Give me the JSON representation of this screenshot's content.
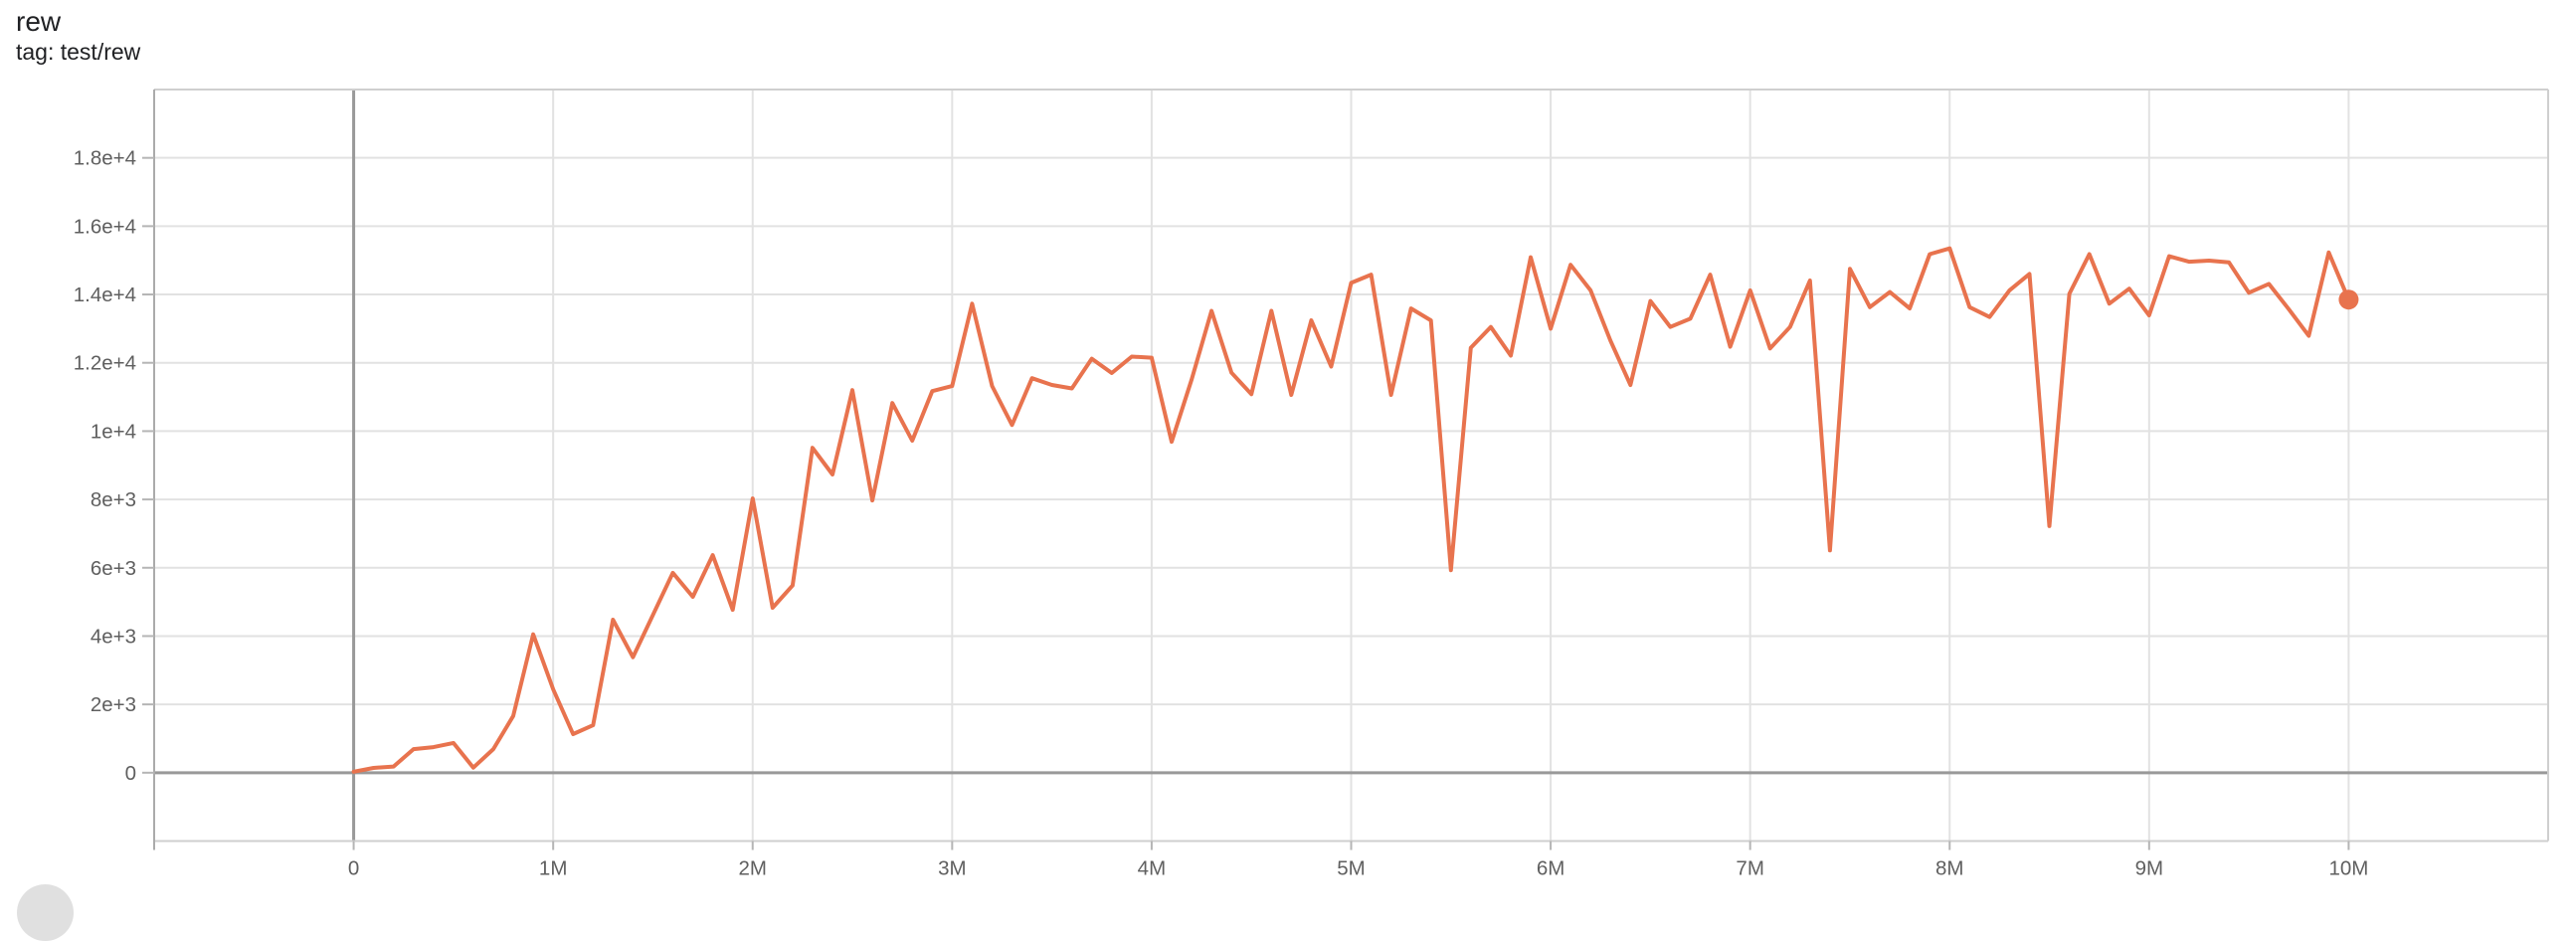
{
  "card": {
    "title": "rew",
    "tag_line": "tag: test/rew"
  },
  "chart_data": {
    "type": "line",
    "title": "rew",
    "tag": "test/rew",
    "grid": true,
    "legend": "none",
    "x_unit": "steps (millions)",
    "x_range_millions": [
      -1,
      11
    ],
    "y_range": [
      -2000,
      20000
    ],
    "x_ticks": [
      {
        "v": 0,
        "label": "0"
      },
      {
        "v": 1,
        "label": "1M"
      },
      {
        "v": 2,
        "label": "2M"
      },
      {
        "v": 3,
        "label": "3M"
      },
      {
        "v": 4,
        "label": "4M"
      },
      {
        "v": 5,
        "label": "5M"
      },
      {
        "v": 6,
        "label": "6M"
      },
      {
        "v": 7,
        "label": "7M"
      },
      {
        "v": 8,
        "label": "8M"
      },
      {
        "v": 9,
        "label": "9M"
      },
      {
        "v": 10,
        "label": "10M"
      }
    ],
    "y_ticks": [
      {
        "v": 0,
        "label": "0"
      },
      {
        "v": 2000,
        "label": "2e+3"
      },
      {
        "v": 4000,
        "label": "4e+3"
      },
      {
        "v": 6000,
        "label": "6e+3"
      },
      {
        "v": 8000,
        "label": "8e+3"
      },
      {
        "v": 10000,
        "label": "1e+4"
      },
      {
        "v": 12000,
        "label": "1.2e+4"
      },
      {
        "v": 14000,
        "label": "1.4e+4"
      },
      {
        "v": 16000,
        "label": "1.6e+4"
      },
      {
        "v": 18000,
        "label": "1.8e+4"
      }
    ],
    "series": [
      {
        "name": "test/rew",
        "color": "#e8734e",
        "end_marker": true,
        "points": [
          [
            0.0,
            30
          ],
          [
            0.1,
            140
          ],
          [
            0.2,
            180
          ],
          [
            0.3,
            690
          ],
          [
            0.4,
            750
          ],
          [
            0.5,
            870
          ],
          [
            0.6,
            150
          ],
          [
            0.7,
            690
          ],
          [
            0.8,
            1660
          ],
          [
            0.9,
            4050
          ],
          [
            1.0,
            2440
          ],
          [
            1.1,
            1130
          ],
          [
            1.2,
            1390
          ],
          [
            1.3,
            4480
          ],
          [
            1.4,
            3380
          ],
          [
            1.5,
            4620
          ],
          [
            1.6,
            5850
          ],
          [
            1.7,
            5150
          ],
          [
            1.8,
            6370
          ],
          [
            1.9,
            4770
          ],
          [
            2.0,
            8030
          ],
          [
            2.1,
            4830
          ],
          [
            2.2,
            5480
          ],
          [
            2.3,
            9510
          ],
          [
            2.4,
            8730
          ],
          [
            2.5,
            11200
          ],
          [
            2.6,
            7970
          ],
          [
            2.7,
            10820
          ],
          [
            2.8,
            9720
          ],
          [
            2.9,
            11170
          ],
          [
            3.0,
            11320
          ],
          [
            3.1,
            13730
          ],
          [
            3.2,
            11320
          ],
          [
            3.3,
            10180
          ],
          [
            3.4,
            11550
          ],
          [
            3.5,
            11350
          ],
          [
            3.6,
            11250
          ],
          [
            3.7,
            12120
          ],
          [
            3.8,
            11700
          ],
          [
            3.9,
            12180
          ],
          [
            4.0,
            12150
          ],
          [
            4.1,
            9690
          ],
          [
            4.2,
            11500
          ],
          [
            4.3,
            13520
          ],
          [
            4.4,
            11710
          ],
          [
            4.5,
            11080
          ],
          [
            4.6,
            13520
          ],
          [
            4.7,
            11060
          ],
          [
            4.8,
            13240
          ],
          [
            4.9,
            11890
          ],
          [
            5.0,
            14340
          ],
          [
            5.1,
            14580
          ],
          [
            5.2,
            11060
          ],
          [
            5.3,
            13590
          ],
          [
            5.4,
            13240
          ],
          [
            5.5,
            5930
          ],
          [
            5.6,
            12440
          ],
          [
            5.7,
            13050
          ],
          [
            5.8,
            12210
          ],
          [
            5.9,
            15090
          ],
          [
            6.0,
            13000
          ],
          [
            6.1,
            14870
          ],
          [
            6.2,
            14120
          ],
          [
            6.3,
            12640
          ],
          [
            6.4,
            11350
          ],
          [
            6.5,
            13810
          ],
          [
            6.6,
            13050
          ],
          [
            6.7,
            13290
          ],
          [
            6.8,
            14580
          ],
          [
            6.9,
            12470
          ],
          [
            7.0,
            14120
          ],
          [
            7.1,
            12420
          ],
          [
            7.2,
            13050
          ],
          [
            7.3,
            14410
          ],
          [
            7.4,
            6510
          ],
          [
            7.5,
            14750
          ],
          [
            7.6,
            13630
          ],
          [
            7.7,
            14070
          ],
          [
            7.8,
            13590
          ],
          [
            7.9,
            15180
          ],
          [
            8.0,
            15350
          ],
          [
            8.1,
            13630
          ],
          [
            8.2,
            13340
          ],
          [
            8.3,
            14120
          ],
          [
            8.4,
            14600
          ],
          [
            8.5,
            7220
          ],
          [
            8.6,
            14020
          ],
          [
            8.7,
            15180
          ],
          [
            8.8,
            13730
          ],
          [
            8.9,
            14170
          ],
          [
            9.0,
            13390
          ],
          [
            9.1,
            15120
          ],
          [
            9.2,
            14960
          ],
          [
            9.3,
            14990
          ],
          [
            9.4,
            14940
          ],
          [
            9.5,
            14050
          ],
          [
            9.6,
            14310
          ],
          [
            9.7,
            13570
          ],
          [
            9.8,
            12790
          ],
          [
            9.9,
            15230
          ],
          [
            10.0,
            13850
          ]
        ]
      }
    ]
  },
  "colors": {
    "line": "#e8734e",
    "grid": "#e2e2e2",
    "zero_line": "#999999",
    "border": "#cfcfcf",
    "border_left": "#ababab",
    "tick": "#b5b5b5",
    "tick_text": "#5f5f5f",
    "title_text": "#202124",
    "corner_button": "#e0e0e0"
  }
}
